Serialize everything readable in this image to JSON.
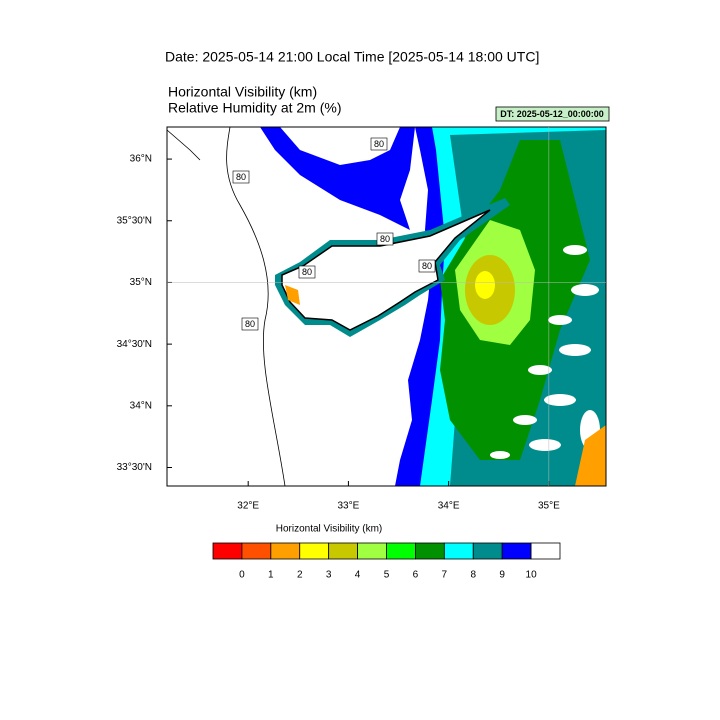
{
  "header": {
    "title": "Date: 2025-05-14  21:00 Local Time [2025-05-14  18:00 UTC]",
    "subtitle_1": "Horizontal Visibility   (km)",
    "subtitle_2": "Relative Humidity at 2m   (%)",
    "dt_label": "DT: 2025-05-12_00:00:00"
  },
  "map": {
    "xlim": [
      31.19,
      35.57
    ],
    "ylim": [
      33.35,
      36.26
    ],
    "lon_ticks": [
      {
        "value": 32,
        "label": "32°E"
      },
      {
        "value": 33,
        "label": "33°E"
      },
      {
        "value": 34,
        "label": "34°E"
      },
      {
        "value": 35,
        "label": "35°E"
      }
    ],
    "lat_ticks": [
      {
        "value": 33.5,
        "label": "33°30'N"
      },
      {
        "value": 34,
        "label": "34°N"
      },
      {
        "value": 34.5,
        "label": "34°30'N"
      },
      {
        "value": 35,
        "label": "35°N"
      },
      {
        "value": 35.5,
        "label": "35°30'N"
      },
      {
        "value": 36,
        "label": "36°N"
      }
    ],
    "contour_labels": [
      80,
      80,
      80,
      80,
      80,
      80
    ]
  },
  "colorbar": {
    "title": "Horizontal Visibility  (km)",
    "levels": [
      0,
      1,
      2,
      3,
      4,
      5,
      6,
      7,
      8,
      9,
      10
    ],
    "colors": [
      "#ff0000",
      "#ff5000",
      "#ffa000",
      "#ffff00",
      "#c8c800",
      "#a0ff40",
      "#00ff00",
      "#009000",
      "#00ffff",
      "#008c8c",
      "#0000ff",
      "#ffffff"
    ]
  }
}
